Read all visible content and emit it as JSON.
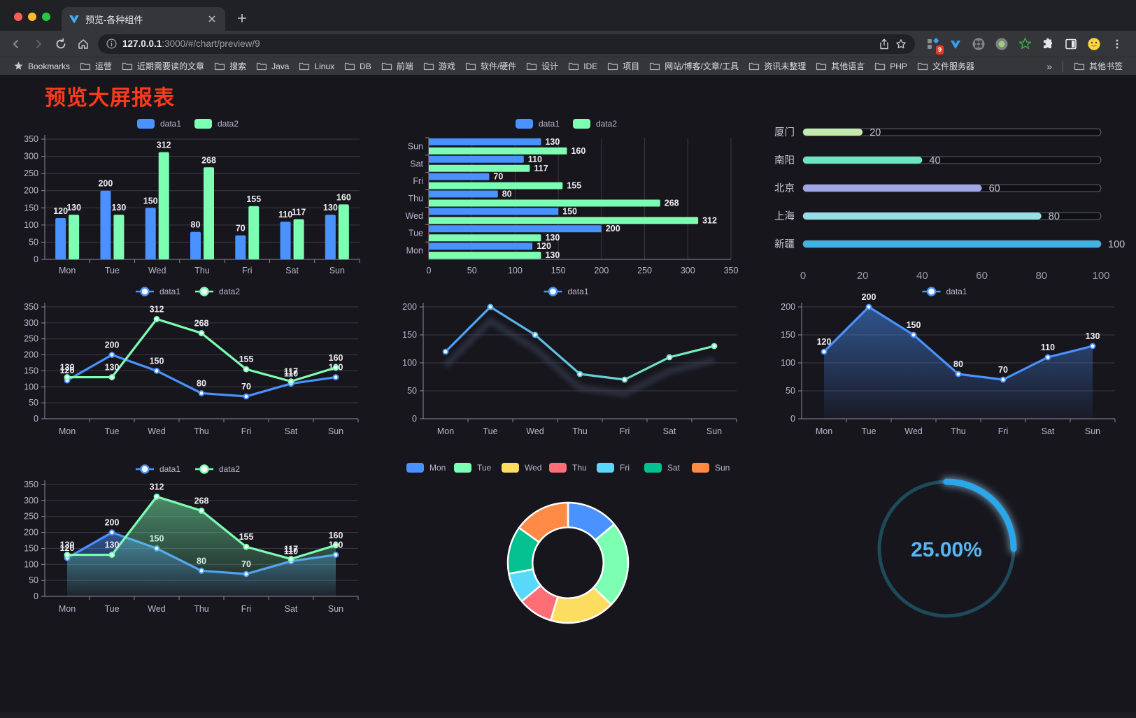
{
  "browser": {
    "tab_title": "预览-各种组件",
    "url_host": "127.0.0.1",
    "url_rest": ":3000/#/chart/preview/9",
    "extension_badge": "9",
    "bookmarks_label": "Bookmarks",
    "bookmarks": [
      "运营",
      "近期需要读的文章",
      "搜索",
      "Java",
      "Linux",
      "DB",
      "前端",
      "游戏",
      "软件/硬件",
      "设计",
      "IDE",
      "项目",
      "网站/博客/文章/工具",
      "资讯未整理",
      "其他语言",
      "PHP",
      "文件服务器"
    ],
    "bookmarks_overflow": "»",
    "other_bookmarks": "其他书签"
  },
  "page": {
    "title": "预览大屏报表",
    "title_color": "#ff3a1c"
  },
  "colors": {
    "data1_blue": "#4992ff",
    "data2_green": "#7cffb2",
    "axis_label": "#b9b8ce",
    "grid_line": "#3a3a45",
    "value_label": "#ececf2"
  },
  "chart_data": [
    {
      "type": "bar",
      "categories": [
        "Mon",
        "Tue",
        "Wed",
        "Thu",
        "Fri",
        "Sat",
        "Sun"
      ],
      "series": [
        {
          "name": "data1",
          "color": "#4992ff",
          "values": [
            120,
            200,
            150,
            80,
            70,
            110,
            130
          ]
        },
        {
          "name": "data2",
          "color": "#7cffb2",
          "values": [
            130,
            130,
            312,
            268,
            155,
            117,
            160
          ]
        }
      ],
      "ylim": [
        0,
        350
      ],
      "ytick_step": 50,
      "value_labels": true,
      "legend_position": "top",
      "grid": true
    },
    {
      "type": "bar-horizontal",
      "categories": [
        "Mon",
        "Tue",
        "Wed",
        "Thu",
        "Fri",
        "Sat",
        "Sun"
      ],
      "series": [
        {
          "name": "data1",
          "color": "#4992ff",
          "values": [
            120,
            200,
            150,
            80,
            70,
            110,
            130
          ]
        },
        {
          "name": "data2",
          "color": "#7cffb2",
          "values": [
            130,
            130,
            312,
            268,
            155,
            117,
            160
          ]
        }
      ],
      "xlim": [
        0,
        350
      ],
      "xtick_step": 50,
      "value_labels": true,
      "legend_position": "top",
      "grid": true
    },
    {
      "type": "progress",
      "max": 100,
      "xticks": [
        0,
        20,
        40,
        60,
        80,
        100
      ],
      "items": [
        {
          "label": "厦门",
          "value": 20,
          "color": "#c4ebad"
        },
        {
          "label": "南阳",
          "value": 40,
          "color": "#6be6c1"
        },
        {
          "label": "北京",
          "value": 60,
          "color": "#a0a7e6"
        },
        {
          "label": "上海",
          "value": 80,
          "color": "#96dee8"
        },
        {
          "label": "新疆",
          "value": 100,
          "color": "#3fb1e3"
        }
      ]
    },
    {
      "type": "line",
      "categories": [
        "Mon",
        "Tue",
        "Wed",
        "Thu",
        "Fri",
        "Sat",
        "Sun"
      ],
      "series": [
        {
          "name": "data1",
          "color": "#4992ff",
          "values": [
            120,
            200,
            150,
            80,
            70,
            110,
            130
          ]
        },
        {
          "name": "data2",
          "color": "#7cffb2",
          "values": [
            130,
            130,
            312,
            268,
            155,
            117,
            160
          ]
        }
      ],
      "ylim": [
        0,
        350
      ],
      "ytick_step": 50,
      "value_labels": true,
      "legend_position": "top",
      "grid": true
    },
    {
      "type": "line",
      "categories": [
        "Mon",
        "Tue",
        "Wed",
        "Thu",
        "Fri",
        "Sat",
        "Sun"
      ],
      "series": [
        {
          "name": "data1",
          "color_gradient": [
            "#4992ff",
            "#7cffb2"
          ],
          "values": [
            120,
            200,
            150,
            80,
            70,
            110,
            130
          ],
          "shadow": true
        }
      ],
      "ylim": [
        0,
        200
      ],
      "ytick_step": 50,
      "value_labels": false,
      "legend_position": "top",
      "grid": true
    },
    {
      "type": "line",
      "categories": [
        "Mon",
        "Tue",
        "Wed",
        "Thu",
        "Fri",
        "Sat",
        "Sun"
      ],
      "series": [
        {
          "name": "data1",
          "color": "#4992ff",
          "values": [
            120,
            200,
            150,
            80,
            70,
            110,
            130
          ],
          "area": true
        }
      ],
      "ylim": [
        0,
        200
      ],
      "ytick_step": 50,
      "value_labels": true,
      "legend_position": "top",
      "grid": true
    },
    {
      "type": "line",
      "categories": [
        "Mon",
        "Tue",
        "Wed",
        "Thu",
        "Fri",
        "Sat",
        "Sun"
      ],
      "series": [
        {
          "name": "data1",
          "color": "#4992ff",
          "values": [
            120,
            200,
            150,
            80,
            70,
            110,
            130
          ],
          "area": true
        },
        {
          "name": "data2",
          "color": "#7cffb2",
          "values": [
            130,
            130,
            312,
            268,
            155,
            117,
            160
          ],
          "area": true
        }
      ],
      "ylim": [
        0,
        350
      ],
      "ytick_step": 50,
      "value_labels": true,
      "legend_position": "top",
      "grid": true
    },
    {
      "type": "pie",
      "legend_position": "top",
      "inner_radius_ratio": 0.59,
      "items": [
        {
          "label": "Mon",
          "value": 120,
          "color": "#4992ff"
        },
        {
          "label": "Tue",
          "value": 200,
          "color": "#7cffb2"
        },
        {
          "label": "Wed",
          "value": 150,
          "color": "#fddd60"
        },
        {
          "label": "Thu",
          "value": 80,
          "color": "#ff6e76"
        },
        {
          "label": "Fri",
          "value": 70,
          "color": "#58d9f9"
        },
        {
          "label": "Sat",
          "value": 110,
          "color": "#05c091"
        },
        {
          "label": "Sun",
          "value": 130,
          "color": "#ff8a45"
        }
      ]
    },
    {
      "type": "gauge",
      "percent": 25,
      "label": "25.00%",
      "arc_color": "#2ba6e8",
      "track_color": "#1d4b5c",
      "text_color": "#58b6f0"
    }
  ]
}
